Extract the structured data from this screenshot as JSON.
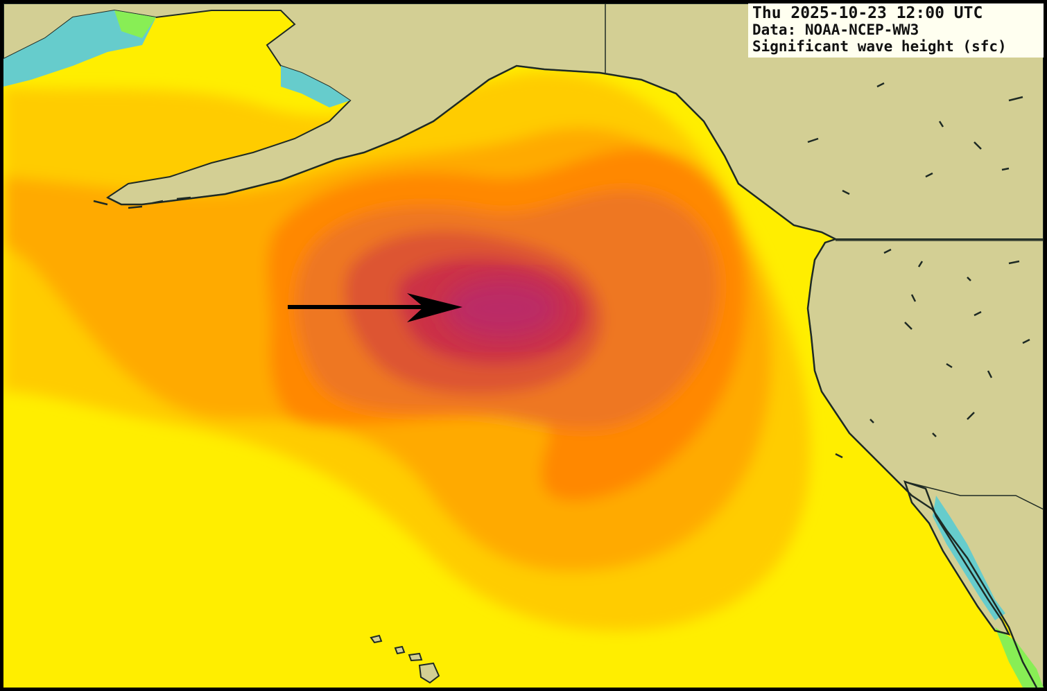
{
  "header": {
    "timestamp": "Thu 2025-10-23 12:00 UTC",
    "data_source": "Data: NOAA-NCEP-WW3",
    "variable": "Significant wave height (sfc)"
  },
  "map": {
    "colors": {
      "land": "#d3cf94",
      "coastline": "#1e2a24",
      "shallow": "#66cccc",
      "green": "#88ee55",
      "yellow": "#ffee00",
      "yellow_orange": "#ffcc00",
      "light_orange": "#ffaa00",
      "orange": "#ff8800",
      "dark_orange": "#ee7722",
      "red_orange": "#dd5533",
      "red": "#cc3344",
      "magenta": "#bb2a66",
      "arrow": "#000000"
    },
    "annotation": "arrow pointing to storm center"
  }
}
